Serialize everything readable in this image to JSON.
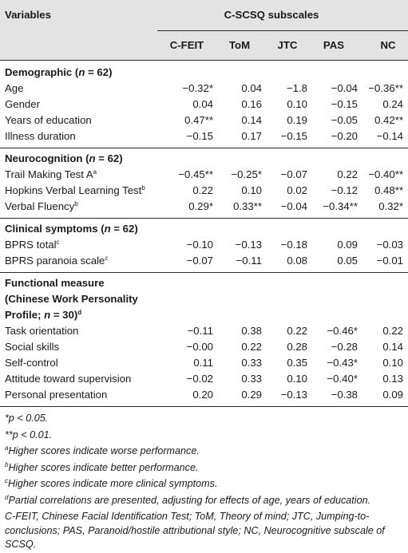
{
  "table": {
    "col_variables": "Variables",
    "group_header": "C-SCSQ subscales",
    "columns": [
      "C-FEIT",
      "ToM",
      "JTC",
      "PAS",
      "NC"
    ],
    "sections": [
      {
        "title_lines": [
          "Demographic (n = 62)"
        ],
        "rows": [
          {
            "label": "Age",
            "sup": "",
            "values": [
              "−0.32*",
              "0.04",
              "−1.8",
              "−0.04",
              "−0.36**"
            ]
          },
          {
            "label": "Gender",
            "sup": "",
            "values": [
              "0.04",
              "0.16",
              "0.10",
              "−0.15",
              "0.24"
            ]
          },
          {
            "label": "Years of education",
            "sup": "",
            "values": [
              "0.47**",
              "0.14",
              "0.19",
              "−0.05",
              "0.42**"
            ]
          },
          {
            "label": "Illness duration",
            "sup": "",
            "values": [
              "−0.15",
              "0.17",
              "−0.15",
              "−0.20",
              "−0.14"
            ]
          }
        ]
      },
      {
        "title_lines": [
          "Neurocognition (n = 62)"
        ],
        "rows": [
          {
            "label": "Trail Making Test A",
            "sup": "a",
            "values": [
              "−0.45**",
              "−0.25*",
              "−0.07",
              "0.22",
              "−0.40**"
            ]
          },
          {
            "label": "Hopkins Verbal Learning Test",
            "sup": "b",
            "values": [
              "0.22",
              "0.10",
              "0.02",
              "−0.12",
              "0.48**"
            ]
          },
          {
            "label": "Verbal Fluency",
            "sup": "b",
            "values": [
              "0.29*",
              "0.33**",
              "−0.04",
              "−0.34**",
              "0.32*"
            ]
          }
        ]
      },
      {
        "title_lines": [
          "Clinical symptoms (n = 62)"
        ],
        "rows": [
          {
            "label": "BPRS total",
            "sup": "c",
            "values": [
              "−0.10",
              "−0.13",
              "−0.18",
              "0.09",
              "−0.03"
            ]
          },
          {
            "label": "BPRS paranoia scale",
            "sup": "c",
            "values": [
              "−0.07",
              "−0.11",
              "0.08",
              "0.05",
              "−0.01"
            ]
          }
        ]
      },
      {
        "title_lines": [
          "Functional measure",
          "(Chinese Work Personality",
          "Profile; n = 30)"
        ],
        "title_sup": "d",
        "rows": [
          {
            "label": "Task orientation",
            "sup": "",
            "values": [
              "−0.11",
              "0.38",
              "0.22",
              "−0.46*",
              "0.22"
            ]
          },
          {
            "label": "Social skills",
            "sup": "",
            "values": [
              "−0.00",
              "0.22",
              "0.28",
              "−0.28",
              "0.14"
            ]
          },
          {
            "label": "Self-control",
            "sup": "",
            "values": [
              "0.11",
              "0.33",
              "0.35",
              "−0.43*",
              "0.10"
            ]
          },
          {
            "label": "Attitude toward supervision",
            "sup": "",
            "values": [
              "−0.02",
              "0.33",
              "0.10",
              "−0.40*",
              "0.13"
            ]
          },
          {
            "label": "Personal presentation",
            "sup": "",
            "values": [
              "0.20",
              "0.29",
              "−0.13",
              "−0.38",
              "0.09"
            ]
          }
        ]
      }
    ]
  },
  "notes": [
    {
      "sup": "",
      "text": "*p < 0.05."
    },
    {
      "sup": "",
      "text": "**p < 0.01."
    },
    {
      "sup": "a",
      "text": "Higher scores indicate worse performance."
    },
    {
      "sup": "b",
      "text": "Higher scores indicate better performance."
    },
    {
      "sup": "c",
      "text": "Higher scores indicate more clinical symptoms."
    },
    {
      "sup": "d",
      "text": "Partial correlations are presented, adjusting for effects of age, years of education."
    },
    {
      "sup": "",
      "text": "C-FEIT, Chinese Facial Identification Test; ToM, Theory of mind; JTC, Jumping-to-"
    },
    {
      "sup": "",
      "text": "conclusions; PAS, Paranoid/hostile attributional style; NC, Neurocognitive subscale of"
    },
    {
      "sup": "",
      "text": "SCSQ."
    }
  ]
}
